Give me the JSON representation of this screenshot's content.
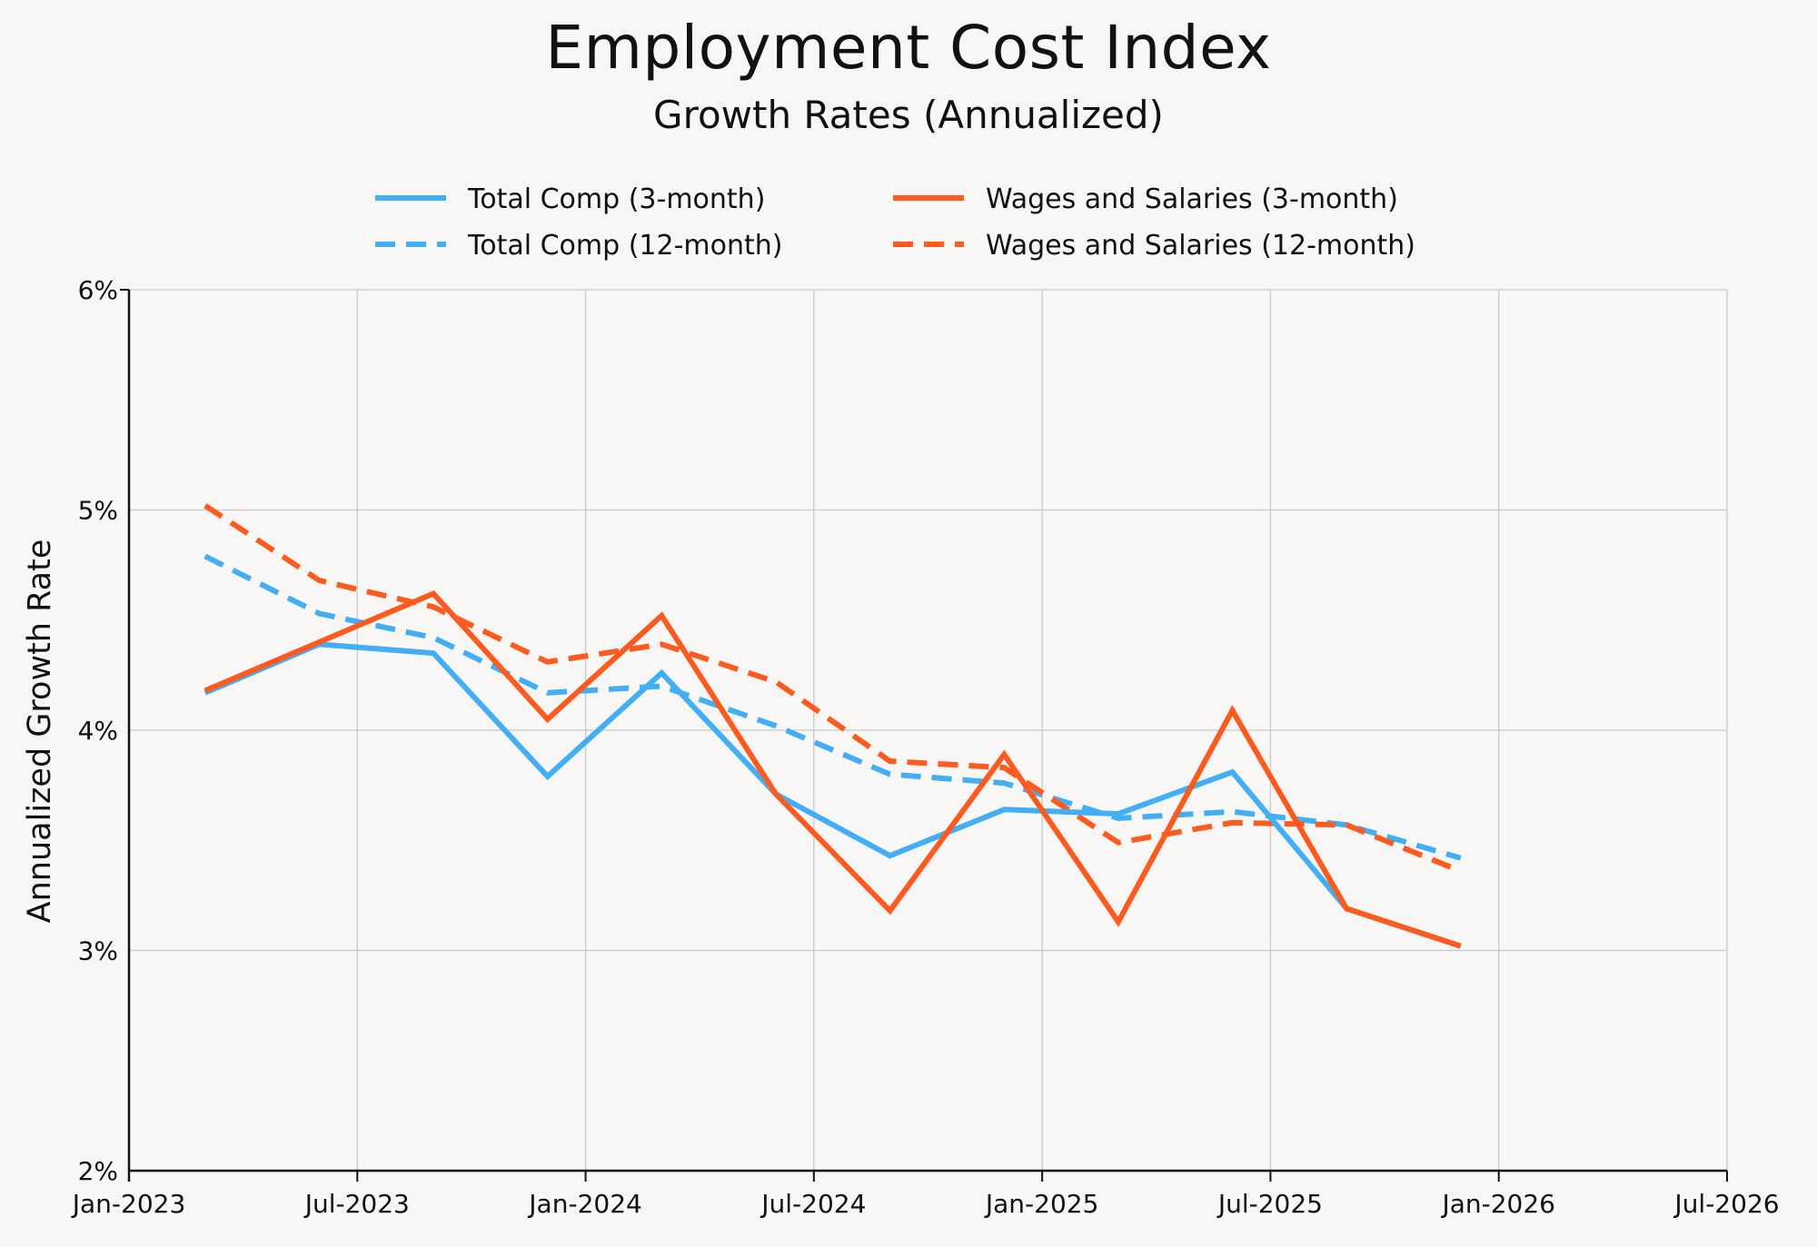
{
  "chart_data": {
    "type": "line",
    "title": "Employment Cost Index",
    "subtitle": "Growth Rates (Annualized)",
    "xlabel": "",
    "ylabel": "Annualized Growth Rate",
    "ylim": [
      2,
      6
    ],
    "yticks": [
      2,
      3,
      4,
      5,
      6
    ],
    "ytick_labels": [
      "2%",
      "3%",
      "4%",
      "5%",
      "6%"
    ],
    "xlim": [
      "2023-01",
      "2026-07"
    ],
    "xticks": [
      "2023-01",
      "2023-07",
      "2024-01",
      "2024-07",
      "2025-01",
      "2025-07",
      "2026-01",
      "2026-07"
    ],
    "xtick_labels": [
      "Jan-2023",
      "Jul-2023",
      "Jan-2024",
      "Jul-2024",
      "Jan-2025",
      "Jul-2025",
      "Jan-2026",
      "Jul-2026"
    ],
    "grid": true,
    "legend_position": "top-center",
    "x": [
      "2023-03",
      "2023-06",
      "2023-09",
      "2023-12",
      "2024-03",
      "2024-06",
      "2024-09",
      "2024-12",
      "2025-03",
      "2025-06",
      "2025-09",
      "2025-12"
    ],
    "series": [
      {
        "name": "Total Comp (3-month)",
        "color": "#42aef5",
        "style": "solid",
        "values": [
          4.17,
          4.39,
          4.35,
          3.79,
          4.26,
          3.71,
          3.43,
          3.64,
          3.62,
          3.81,
          3.19,
          3.02
        ]
      },
      {
        "name": "Wages and Salaries (3-month)",
        "color": "#fc5a1f",
        "style": "solid",
        "values": [
          4.18,
          4.4,
          4.62,
          4.05,
          4.52,
          3.71,
          3.18,
          3.89,
          3.13,
          4.09,
          3.19,
          3.02
        ]
      },
      {
        "name": "Total Comp (12-month)",
        "color": "#42aef5",
        "style": "dashed",
        "values": [
          4.79,
          4.53,
          4.42,
          4.17,
          4.2,
          4.02,
          3.8,
          3.76,
          3.6,
          3.63,
          3.57,
          3.42
        ]
      },
      {
        "name": "Wages and Salaries (12-month)",
        "color": "#fc5a1f",
        "style": "dashed",
        "values": [
          5.02,
          4.68,
          4.56,
          4.31,
          4.39,
          4.22,
          3.86,
          3.83,
          3.49,
          3.58,
          3.57,
          3.36
        ]
      }
    ],
    "legend_order": [
      0,
      2,
      1,
      3
    ]
  }
}
